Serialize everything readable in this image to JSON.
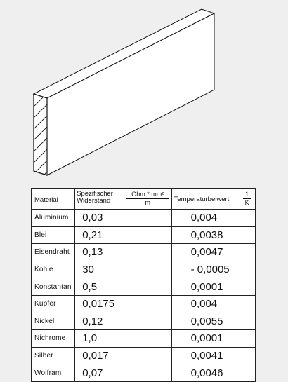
{
  "table": {
    "header": {
      "material": "Material",
      "resistance_line1": "Spezifischer",
      "resistance_line2": "Widerstand",
      "resistance_unit_numerator": "Ohm * mm²",
      "resistance_unit_denominator": "m",
      "coefficient": "Temperaturbeiwert",
      "coefficient_unit_numerator": "1",
      "coefficient_unit_denominator": "K"
    },
    "rows": [
      {
        "material": "Aluminium",
        "resistance": "0,03",
        "coefficient": "0,004"
      },
      {
        "material": "Blei",
        "resistance": "0,21",
        "coefficient": "0,0038"
      },
      {
        "material": "Eisendraht",
        "resistance": "0,13",
        "coefficient": "0,0047"
      },
      {
        "material": "Kohle",
        "resistance": "30",
        "coefficient": "- 0,0005"
      },
      {
        "material": "Konstantan",
        "resistance": "0,5",
        "coefficient": "0,0001"
      },
      {
        "material": "Kupfer",
        "resistance": "0,0175",
        "coefficient": "0,004"
      },
      {
        "material": "Nickel",
        "resistance": "0,12",
        "coefficient": "0,0055"
      },
      {
        "material": "Nichrome",
        "resistance": "1,0",
        "coefficient": "0,0001"
      },
      {
        "material": "Silber",
        "resistance": "0,017",
        "coefficient": "0,0041"
      },
      {
        "material": "Wolfram",
        "resistance": "0,07",
        "coefficient": "0,0046"
      }
    ]
  }
}
